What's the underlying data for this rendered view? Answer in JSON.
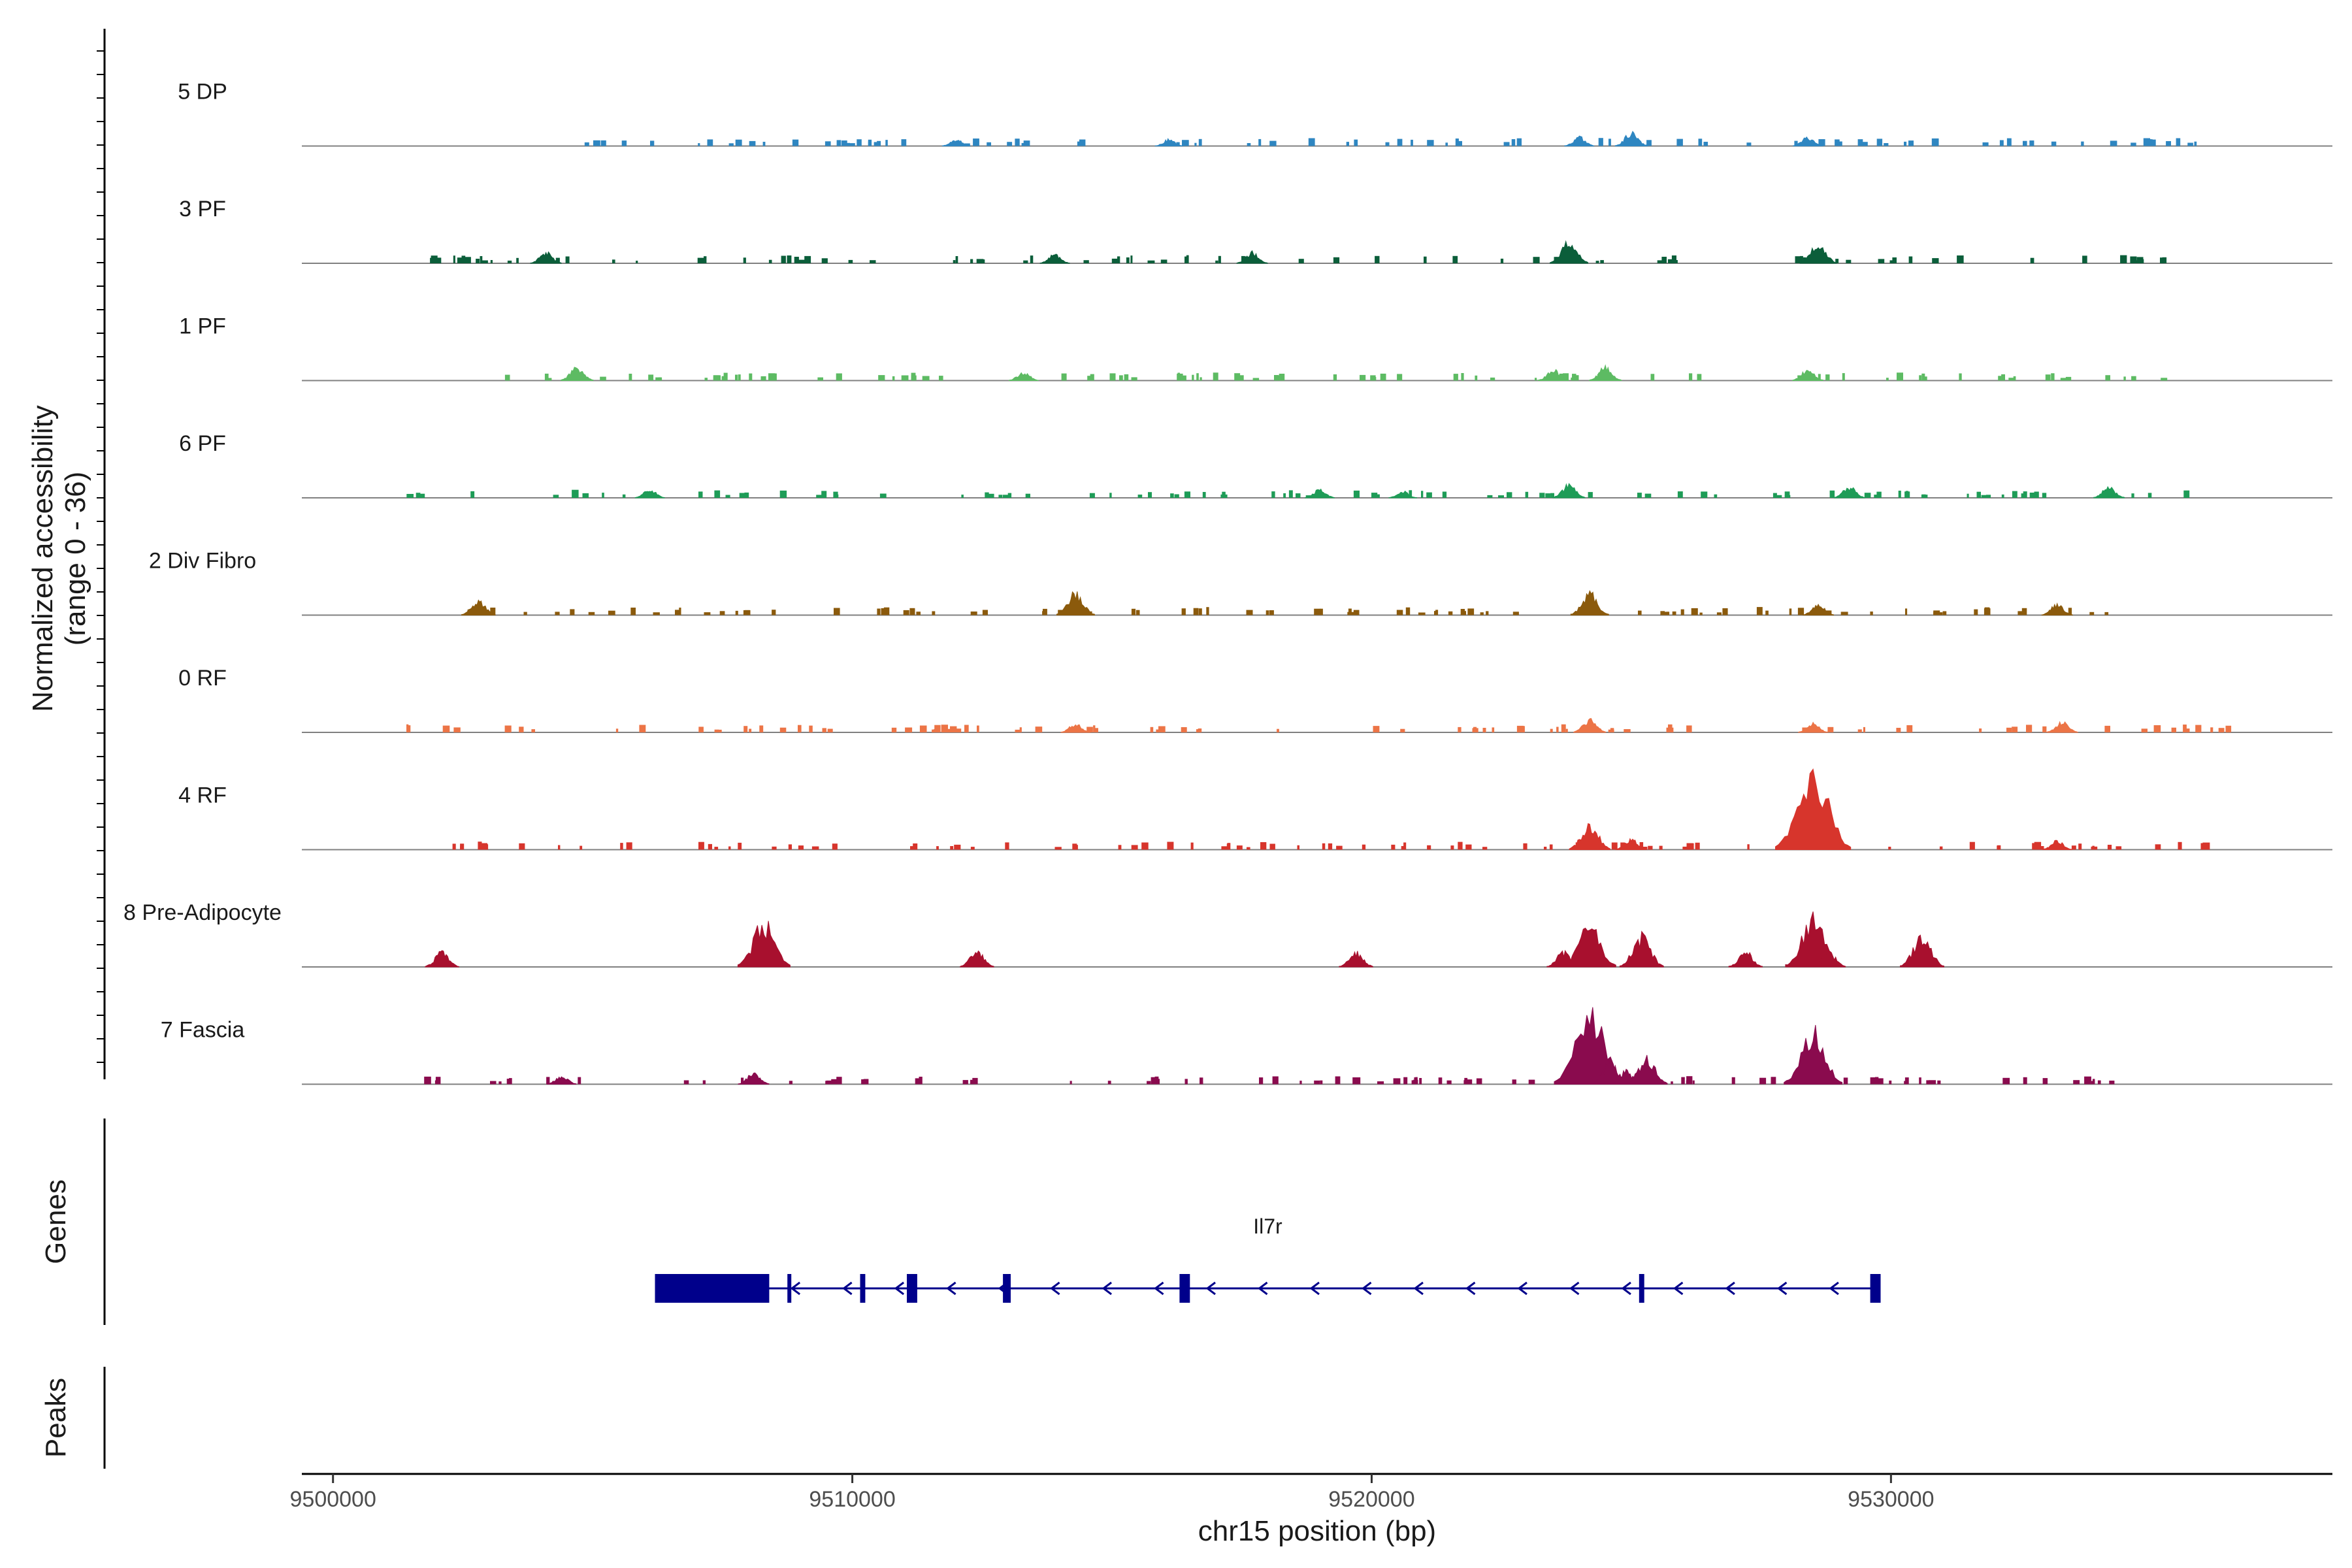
{
  "chart_data": {
    "type": "area",
    "title": "",
    "chromosome": "chr15",
    "xlabel": "chr15 position (bp)",
    "ylabel": "Normalized accessibility",
    "ylabel_range": "(range 0 - 36)",
    "xlim": [
      9499400,
      9538500
    ],
    "ylim": [
      0,
      36
    ],
    "x_ticks": [
      9500000,
      9510000,
      9520000,
      9530000
    ],
    "x_tick_labels": [
      "9500000",
      "9510000",
      "9520000",
      "9530000"
    ],
    "series": [
      {
        "name": "5 DP",
        "color": "#2E86C1",
        "scatter": [
          9504600,
          9536300
        ],
        "peaks": [
          [
            9524000,
            4
          ],
          [
            9525000,
            6
          ],
          [
            9528400,
            4
          ],
          [
            9516100,
            3
          ],
          [
            9512000,
            3
          ]
        ]
      },
      {
        "name": "3 PF",
        "color": "#0B5E3A",
        "scatter": [
          9501600,
          9536400
        ],
        "peaks": [
          [
            9523800,
            10
          ],
          [
            9528600,
            9
          ],
          [
            9504100,
            5
          ],
          [
            9517700,
            5
          ],
          [
            9513900,
            4
          ]
        ]
      },
      {
        "name": "1 PF",
        "color": "#5DBB63",
        "scatter": [
          9503200,
          9536300
        ],
        "peaks": [
          [
            9504700,
            6
          ],
          [
            9523500,
            5
          ],
          [
            9524500,
            6
          ],
          [
            9528400,
            5
          ],
          [
            9513300,
            4
          ]
        ]
      },
      {
        "name": "6 PF",
        "color": "#1E9C57",
        "scatter": [
          9501400,
          9536000
        ],
        "peaks": [
          [
            9523800,
            6
          ],
          [
            9529200,
            5
          ],
          [
            9534200,
            5
          ],
          [
            9520600,
            3
          ],
          [
            9519000,
            4
          ],
          [
            9506100,
            4
          ]
        ]
      },
      {
        "name": "2 Div Fibro",
        "color": "#8B5A0C",
        "scatter": [
          9502300,
          9536500
        ],
        "peaks": [
          [
            9514300,
            10
          ],
          [
            9524200,
            10
          ],
          [
            9502800,
            7
          ],
          [
            9528600,
            5
          ],
          [
            9533200,
            5
          ]
        ]
      },
      {
        "name": "0 RF",
        "color": "#EC7446",
        "scatter": [
          9501300,
          9536500
        ],
        "peaks": [
          [
            9514300,
            4
          ],
          [
            9524200,
            6
          ],
          [
            9528500,
            4
          ],
          [
            9533300,
            5
          ]
        ]
      },
      {
        "name": "4 RF",
        "color": "#D7352C",
        "scatter": [
          9502300,
          9536200
        ],
        "peaks": [
          [
            9528500,
            36
          ],
          [
            9524200,
            12
          ],
          [
            9525000,
            5
          ],
          [
            9533200,
            4
          ]
        ]
      },
      {
        "name": "8 Pre-Adipocyte",
        "color": "#A8102E",
        "scatter": [],
        "peaks": [
          [
            9502100,
            7
          ],
          [
            9508300,
            20
          ],
          [
            9512400,
            7
          ],
          [
            9519700,
            7
          ],
          [
            9523700,
            7
          ],
          [
            9524200,
            20
          ],
          [
            9525200,
            14
          ],
          [
            9527200,
            7
          ],
          [
            9528500,
            22
          ],
          [
            9528800,
            7
          ],
          [
            9530600,
            14
          ]
        ]
      },
      {
        "name": "7 Fascia",
        "color": "#8A0B4E",
        "scatter": [
          9501300,
          9534400
        ],
        "peaks": [
          [
            9524200,
            33
          ],
          [
            9524600,
            10
          ],
          [
            9524900,
            6
          ],
          [
            9525300,
            12
          ],
          [
            9528500,
            24
          ],
          [
            9504400,
            4
          ],
          [
            9508100,
            5
          ]
        ]
      }
    ]
  },
  "genes_track": {
    "label": "Genes",
    "gene_name": "Il7r",
    "color": "#00008B",
    "start": 9506200,
    "end": 9529800,
    "strand": "-",
    "exons": [
      [
        9506200,
        9508400
      ],
      [
        9508750,
        9508800
      ],
      [
        9510150,
        9510250
      ],
      [
        9511050,
        9511250
      ],
      [
        9512900,
        9513050
      ],
      [
        9516300,
        9516500
      ],
      [
        9525150,
        9525250
      ],
      [
        9529600,
        9529800
      ]
    ]
  },
  "peaks_track": {
    "label": "Peaks"
  }
}
